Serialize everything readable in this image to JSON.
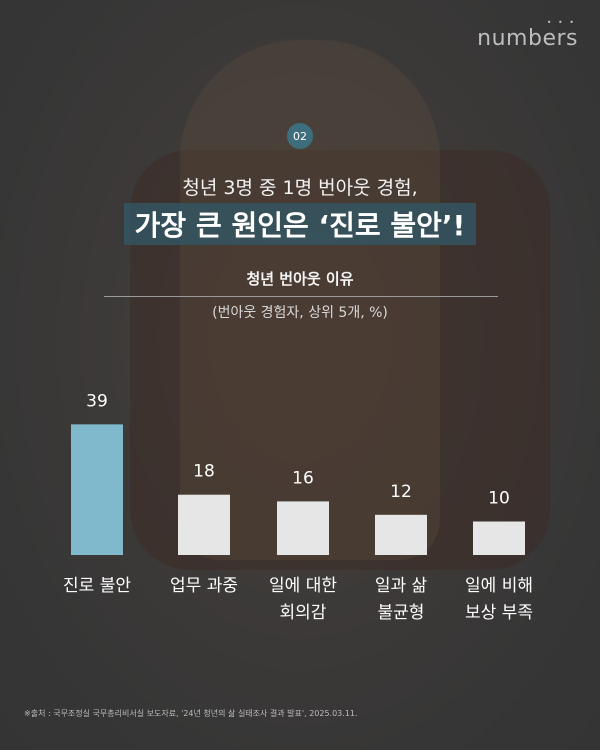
{
  "brand": {
    "logo": "numbers"
  },
  "badge": "02",
  "subtitle": "청년 3명 중 1명 번아웃 경험,",
  "headline": "가장 큰 원인은 ‘진로 불안’!",
  "source": "※출처 : 국무조정실 국무총리비서실 보도자료, '24년 청년의 삶 실태조사 결과 발표', 2025.03.11.",
  "colors": {
    "highlight": "#7fb9cb",
    "default": "#e6e6e6",
    "headline_bg": "#325a69"
  },
  "chart_data": {
    "type": "bar",
    "title": "청년 번아웃 이유",
    "subtitle": "(번아웃 경험자, 상위 5개, %)",
    "categories": [
      [
        "진로 불안"
      ],
      [
        "업무 과중"
      ],
      [
        "일에 대한",
        "회의감"
      ],
      [
        "일과 삶",
        "불균형"
      ],
      [
        "일에 비해",
        "보상 부족"
      ]
    ],
    "values": [
      39,
      18,
      16,
      12,
      10
    ],
    "highlight_index": 0,
    "grid": false
  }
}
